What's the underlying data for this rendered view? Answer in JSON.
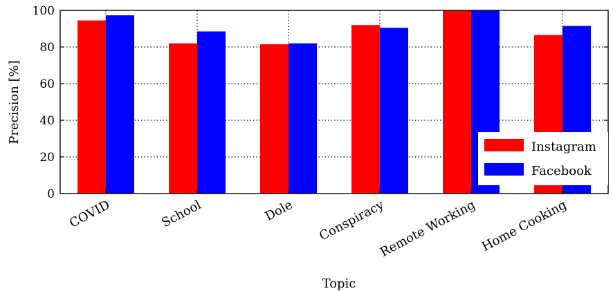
{
  "chart_data": {
    "type": "bar",
    "categories": [
      "COVID",
      "School",
      "Dole",
      "Conspiracy",
      "Remote Working",
      "Home Cooking"
    ],
    "series": [
      {
        "name": "Instagram",
        "color": "#ff0000",
        "values": [
          94.5,
          82,
          81.5,
          92,
          100,
          86.5
        ]
      },
      {
        "name": "Facebook",
        "color": "#0000ff",
        "values": [
          97.3,
          88.5,
          82,
          90.5,
          100,
          91.5
        ]
      }
    ],
    "xlabel": "Topic",
    "ylabel": "Precision [%]",
    "ylim": [
      0,
      100
    ],
    "yticks": [
      "0",
      "20",
      "40",
      "60",
      "80",
      "100"
    ],
    "grid": true,
    "legend": "bottom-right"
  }
}
